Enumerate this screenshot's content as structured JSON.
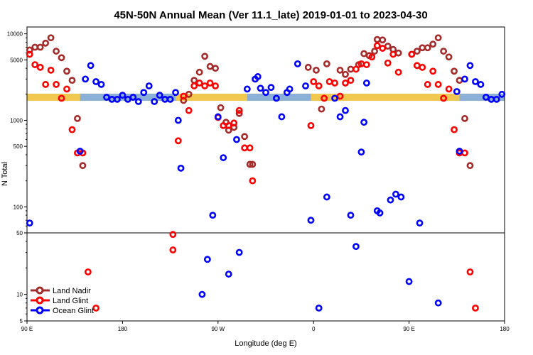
{
  "chart_data": {
    "type": "scatter",
    "title": "45N-50N Annual Mean (Ver 11.1_late)   2019-01-01 to 2023-04-30",
    "xlabel": "Longitude (deg E)",
    "ylabel": "N Total",
    "x_ticks": [
      "90 E",
      "180",
      "90 W",
      "0",
      "90 E",
      "180"
    ],
    "y_ticks_upper": [
      "10000",
      "5000",
      "1000",
      "500",
      "100",
      "50"
    ],
    "y_ticks_lower": [
      "50",
      "10",
      "5"
    ],
    "upper_ylim": [
      50,
      12000
    ],
    "lower_ylim": [
      5,
      50
    ],
    "xlim": [
      0,
      360
    ],
    "colors": {
      "land_nadir": "#a52a2a",
      "land_glint": "#ff0000",
      "ocean_glint": "#0000ff",
      "band_land": "#f0c850",
      "band_ocean": "#8ab0d8"
    },
    "series": [
      {
        "name": "Land Nadir",
        "color": "#a52a2a",
        "points": [
          [
            2,
            6500
          ],
          [
            6,
            7000
          ],
          [
            10,
            7000
          ],
          [
            14,
            7800
          ],
          [
            18,
            9000
          ],
          [
            22,
            6300
          ],
          [
            26,
            5300
          ],
          [
            30,
            3700
          ],
          [
            34,
            2900
          ],
          [
            38,
            1050
          ],
          [
            42,
            300
          ],
          [
            118,
            1700
          ],
          [
            122,
            2000
          ],
          [
            126,
            2900
          ],
          [
            130,
            3600
          ],
          [
            134,
            5500
          ],
          [
            138,
            4200
          ],
          [
            142,
            4000
          ],
          [
            146,
            1400
          ],
          [
            150,
            950
          ],
          [
            152,
            770
          ],
          [
            156,
            830
          ],
          [
            160,
            1200
          ],
          [
            164,
            650
          ],
          [
            168,
            310
          ],
          [
            170,
            310
          ],
          [
            212,
            4100
          ],
          [
            222,
            1350
          ],
          [
            218,
            3800
          ],
          [
            226,
            4500
          ],
          [
            236,
            3800
          ],
          [
            240,
            3400
          ],
          [
            244,
            3900
          ],
          [
            250,
            4400
          ],
          [
            254,
            5900
          ],
          [
            258,
            5600
          ],
          [
            262,
            6300
          ],
          [
            264,
            8600
          ],
          [
            268,
            8500
          ],
          [
            272,
            7200
          ],
          [
            276,
            6600
          ],
          [
            280,
            6000
          ],
          [
            290,
            5800
          ],
          [
            294,
            6300
          ],
          [
            298,
            6900
          ],
          [
            302,
            6900
          ],
          [
            306,
            7600
          ],
          [
            310,
            9000
          ],
          [
            314,
            6300
          ],
          [
            318,
            5400
          ],
          [
            322,
            3700
          ],
          [
            326,
            2900
          ],
          [
            330,
            1050
          ],
          [
            334,
            300
          ]
        ]
      },
      {
        "name": "Land Glint",
        "color": "#ff0000",
        "points": [
          [
            2,
            5800
          ],
          [
            6,
            4400
          ],
          [
            10,
            4100
          ],
          [
            14,
            2600
          ],
          [
            18,
            3800
          ],
          [
            22,
            2600
          ],
          [
            26,
            1800
          ],
          [
            30,
            2300
          ],
          [
            34,
            780
          ],
          [
            38,
            420
          ],
          [
            42,
            420
          ],
          [
            46,
            18
          ],
          [
            52,
            7
          ],
          [
            118,
            1900
          ],
          [
            122,
            1300
          ],
          [
            110,
            48
          ],
          [
            110,
            32
          ],
          [
            114,
            580
          ],
          [
            126,
            2500
          ],
          [
            130,
            2700
          ],
          [
            134,
            2500
          ],
          [
            138,
            2700
          ],
          [
            142,
            2500
          ],
          [
            144,
            1080
          ],
          [
            148,
            870
          ],
          [
            152,
            870
          ],
          [
            156,
            930
          ],
          [
            160,
            1300
          ],
          [
            164,
            480
          ],
          [
            168,
            480
          ],
          [
            170,
            200
          ],
          [
            214,
            870
          ],
          [
            216,
            2800
          ],
          [
            220,
            2500
          ],
          [
            224,
            1800
          ],
          [
            228,
            2800
          ],
          [
            232,
            2700
          ],
          [
            236,
            1900
          ],
          [
            240,
            2700
          ],
          [
            244,
            2900
          ],
          [
            248,
            3900
          ],
          [
            252,
            4500
          ],
          [
            256,
            4400
          ],
          [
            260,
            5400
          ],
          [
            264,
            7300
          ],
          [
            268,
            6800
          ],
          [
            272,
            4600
          ],
          [
            276,
            5800
          ],
          [
            280,
            3600
          ],
          [
            290,
            5800
          ],
          [
            294,
            4300
          ],
          [
            298,
            4100
          ],
          [
            302,
            2600
          ],
          [
            306,
            3700
          ],
          [
            310,
            2600
          ],
          [
            314,
            1800
          ],
          [
            318,
            2300
          ],
          [
            322,
            780
          ],
          [
            326,
            420
          ],
          [
            330,
            420
          ],
          [
            334,
            18
          ],
          [
            338,
            7
          ]
        ]
      },
      {
        "name": "Ocean Glint",
        "color": "#0000ff",
        "points": [
          [
            2,
            65
          ],
          [
            40,
            440
          ],
          [
            44,
            3000
          ],
          [
            48,
            4300
          ],
          [
            52,
            2800
          ],
          [
            56,
            2600
          ],
          [
            60,
            1850
          ],
          [
            64,
            1750
          ],
          [
            68,
            1750
          ],
          [
            72,
            1950
          ],
          [
            76,
            1750
          ],
          [
            80,
            1850
          ],
          [
            84,
            1650
          ],
          [
            88,
            2100
          ],
          [
            92,
            2500
          ],
          [
            96,
            1650
          ],
          [
            100,
            1950
          ],
          [
            104,
            1750
          ],
          [
            108,
            1750
          ],
          [
            112,
            2100
          ],
          [
            114,
            1000
          ],
          [
            116,
            280
          ],
          [
            132,
            10
          ],
          [
            136,
            25
          ],
          [
            140,
            80
          ],
          [
            144,
            1100
          ],
          [
            148,
            370
          ],
          [
            152,
            17
          ],
          [
            158,
            600
          ],
          [
            160,
            30
          ],
          [
            166,
            2300
          ],
          [
            172,
            3000
          ],
          [
            174,
            3200
          ],
          [
            176,
            2350
          ],
          [
            180,
            2100
          ],
          [
            184,
            2400
          ],
          [
            188,
            1800
          ],
          [
            192,
            1100
          ],
          [
            196,
            2100
          ],
          [
            198,
            2300
          ],
          [
            204,
            4500
          ],
          [
            210,
            2500
          ],
          [
            214,
            70
          ],
          [
            220,
            7
          ],
          [
            226,
            130
          ],
          [
            232,
            1800
          ],
          [
            236,
            1100
          ],
          [
            240,
            1300
          ],
          [
            244,
            80
          ],
          [
            248,
            35
          ],
          [
            252,
            430
          ],
          [
            254,
            950
          ],
          [
            256,
            2700
          ],
          [
            264,
            90
          ],
          [
            266,
            85
          ],
          [
            274,
            120
          ],
          [
            278,
            140
          ],
          [
            282,
            130
          ],
          [
            288,
            14
          ],
          [
            296,
            65
          ],
          [
            310,
            8
          ],
          [
            324,
            2150
          ],
          [
            326,
            440
          ],
          [
            330,
            3000
          ],
          [
            334,
            4300
          ],
          [
            338,
            2800
          ],
          [
            342,
            2600
          ],
          [
            346,
            1850
          ],
          [
            350,
            1750
          ],
          [
            354,
            1750
          ],
          [
            358,
            2000
          ]
        ]
      }
    ],
    "legend": {
      "placement": "bottom-left",
      "entries": [
        "Land Nadir",
        "Land Glint",
        "Ocean Glint"
      ]
    }
  }
}
